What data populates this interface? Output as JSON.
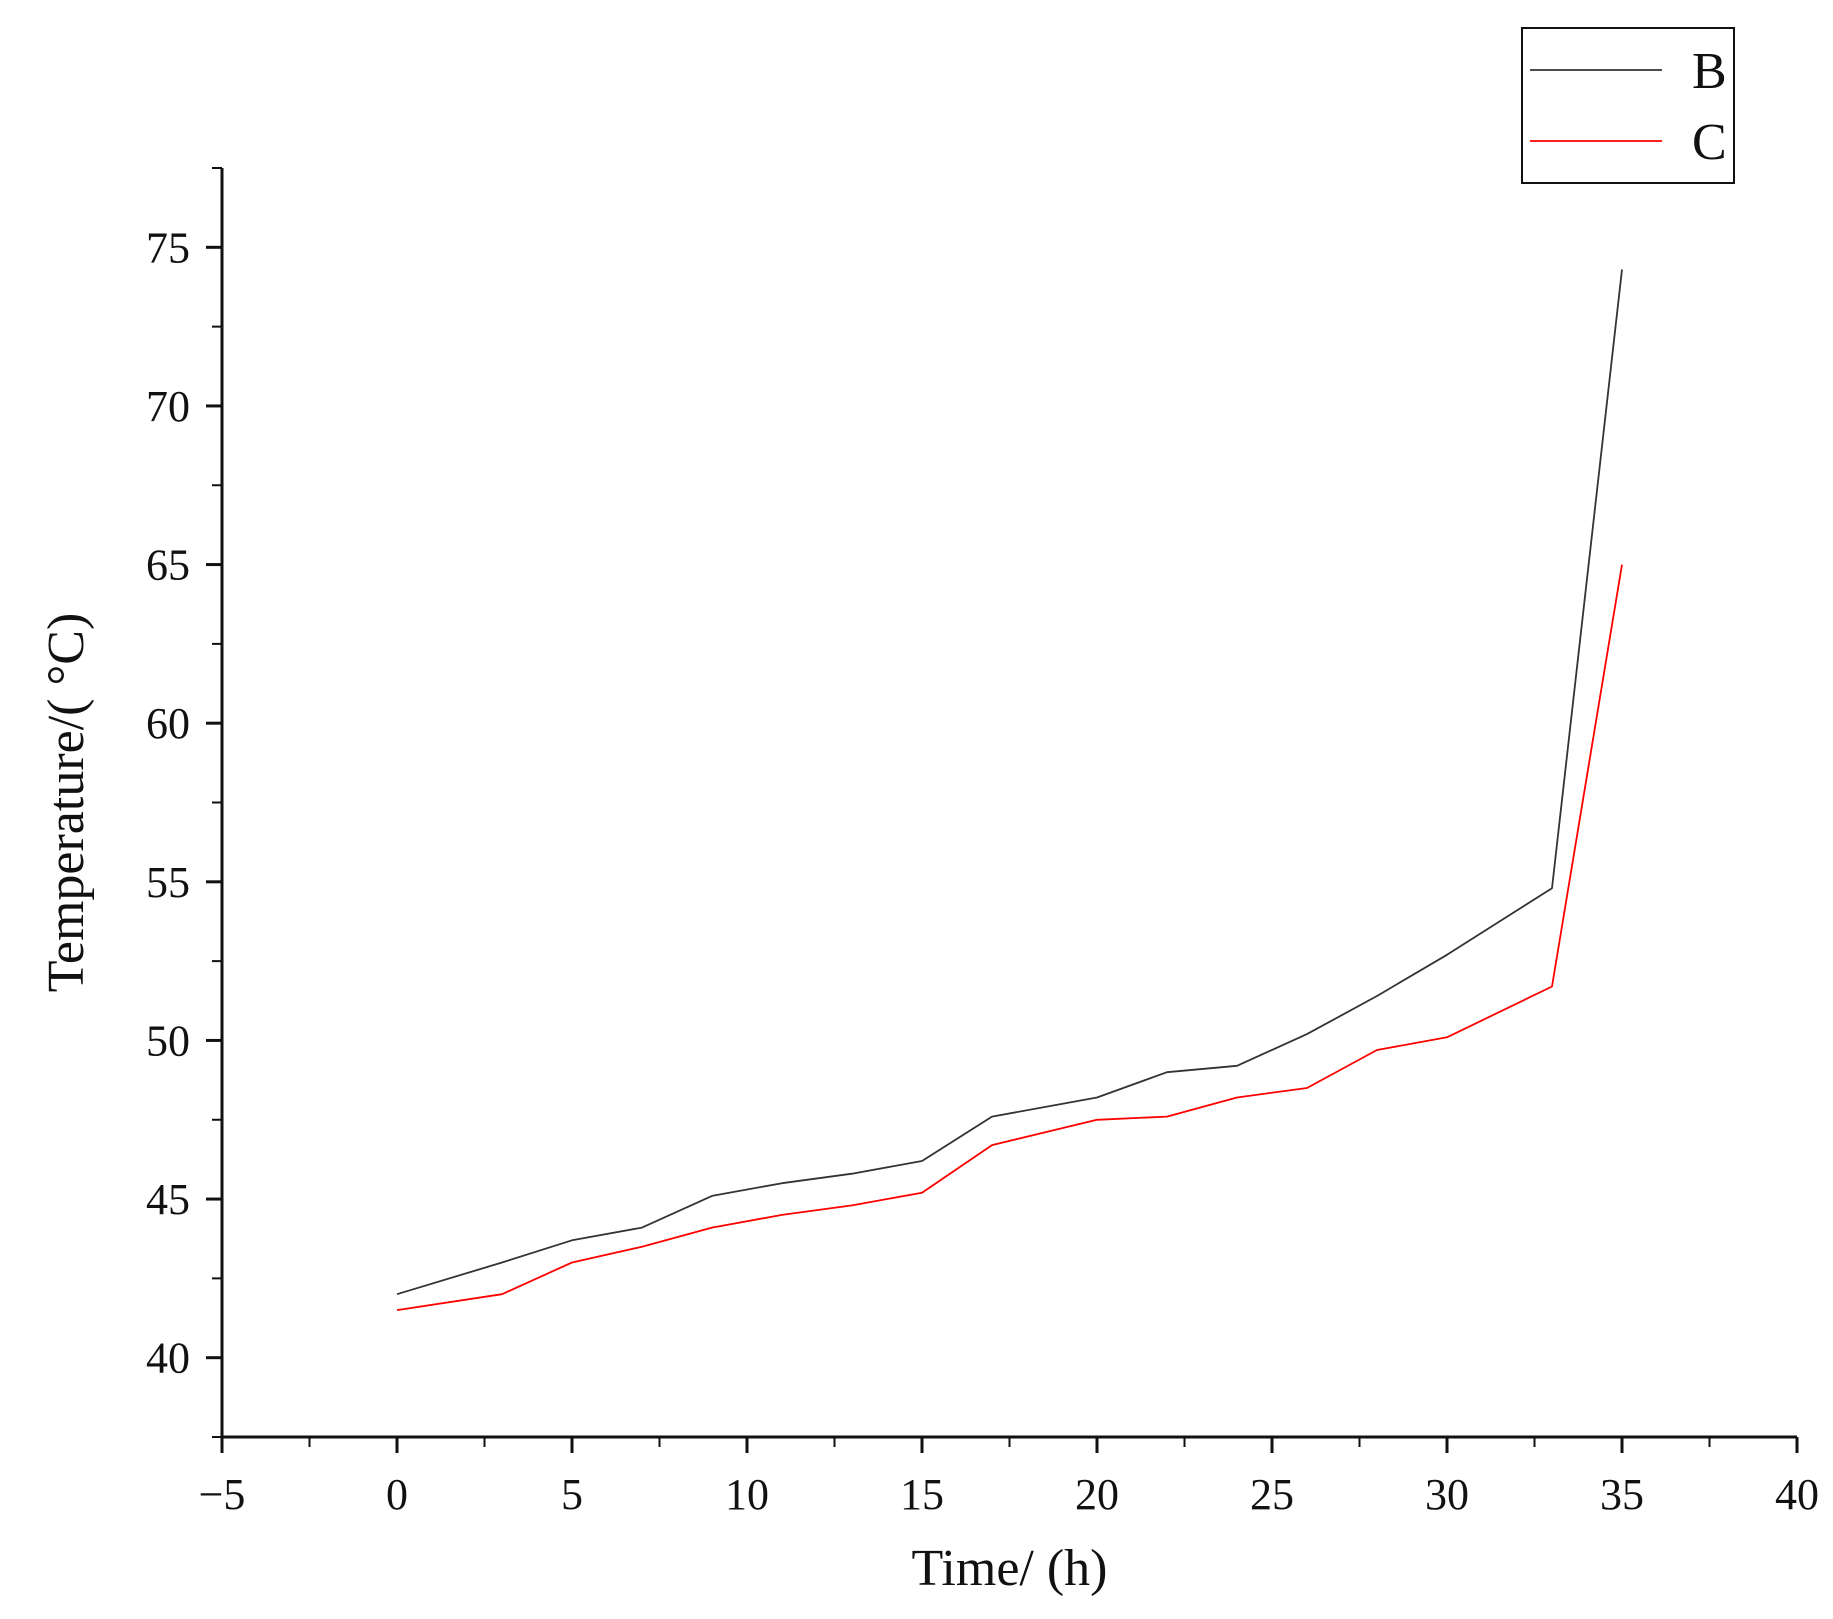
{
  "chart_data": {
    "type": "line",
    "xlabel": "Time/ (h)",
    "ylabel": "Temperature/( °C)",
    "xlim": [
      -5,
      40
    ],
    "ylim": [
      37.5,
      77.5
    ],
    "x_ticks": [
      -5,
      0,
      5,
      10,
      15,
      20,
      25,
      30,
      35,
      40
    ],
    "x_tick_labels": [
      "−5",
      "0",
      "5",
      "10",
      "15",
      "20",
      "25",
      "30",
      "35",
      "40"
    ],
    "y_ticks": [
      40,
      45,
      50,
      55,
      60,
      65,
      70,
      75
    ],
    "y_tick_labels": [
      "40",
      "45",
      "50",
      "55",
      "60",
      "65",
      "70",
      "75"
    ],
    "grid": false,
    "legend_position": "top-right",
    "series": [
      {
        "name": "B",
        "color": "#333333",
        "points": [
          [
            0,
            42.0
          ],
          [
            3,
            43.0
          ],
          [
            5,
            43.7
          ],
          [
            7,
            44.1
          ],
          [
            9,
            45.1
          ],
          [
            11,
            45.5
          ],
          [
            13,
            45.8
          ],
          [
            15,
            46.2
          ],
          [
            17,
            47.6
          ],
          [
            20,
            48.2
          ],
          [
            22,
            49.0
          ],
          [
            24,
            49.2
          ],
          [
            26,
            50.2
          ],
          [
            28,
            51.4
          ],
          [
            30,
            52.7
          ],
          [
            33,
            54.8
          ],
          [
            35,
            74.3
          ]
        ]
      },
      {
        "name": "C",
        "color": "#ff0000",
        "points": [
          [
            0,
            41.5
          ],
          [
            3,
            42.0
          ],
          [
            5,
            43.0
          ],
          [
            7,
            43.5
          ],
          [
            9,
            44.1
          ],
          [
            11,
            44.5
          ],
          [
            13,
            44.8
          ],
          [
            15,
            45.2
          ],
          [
            17,
            46.7
          ],
          [
            20,
            47.5
          ],
          [
            22,
            47.6
          ],
          [
            24,
            48.2
          ],
          [
            26,
            48.5
          ],
          [
            28,
            49.7
          ],
          [
            30,
            50.1
          ],
          [
            33,
            51.7
          ],
          [
            35,
            65.0
          ]
        ]
      }
    ]
  }
}
